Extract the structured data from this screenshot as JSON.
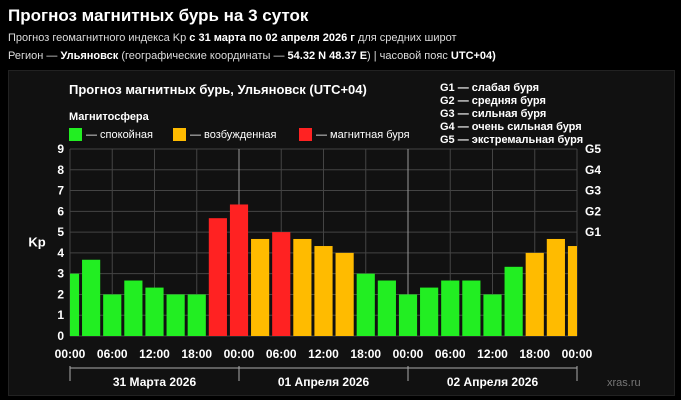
{
  "header": {
    "title": "Прогноз магнитных бурь на 3 суток",
    "line1_prefix": "Прогноз геомагнитного индекса Kp",
    "line1_dates": "с 31 марта по 02 апреля 2026 г",
    "line1_suffix": "для средних широт",
    "line2_prefix": "Регион —",
    "line2_city": "Ульяновск",
    "line2_coords_prefix": "(географические координаты —",
    "line2_coords": "54.32 N 48.37 E",
    "line2_tz_prefix": ") | часовой пояс",
    "line2_tz": "UTC+04)"
  },
  "chart_data": {
    "type": "bar",
    "title": "Прогноз магнитных бурь, Ульяновск (UTC+04)",
    "ylabel": "Kp",
    "ylim": [
      0,
      9
    ],
    "yticks": [
      0,
      1,
      2,
      3,
      4,
      5,
      6,
      7,
      8,
      9
    ],
    "g_scale": [
      {
        "label": "G1",
        "kp": 5
      },
      {
        "label": "G2",
        "kp": 6
      },
      {
        "label": "G3",
        "kp": 7
      },
      {
        "label": "G4",
        "kp": 8
      },
      {
        "label": "G5",
        "kp": 9
      }
    ],
    "legend_title": "Магнитосфера",
    "legend": [
      {
        "label": "— спокойная",
        "color": "#22ee22"
      },
      {
        "label": "— возбужденная",
        "color": "#ffbb00"
      },
      {
        "label": "— магнитная буря",
        "color": "#ff2222"
      }
    ],
    "g_legend": [
      "G1 — слабая буря",
      "G2 — средняя буря",
      "G3 — сильная буря",
      "G4 — очень сильная буря",
      "G5 — экстремальная буря"
    ],
    "values": [
      3.0,
      3.67,
      2.0,
      2.67,
      2.33,
      2.0,
      2.0,
      5.67,
      6.33,
      4.67,
      5.0,
      4.67,
      4.33,
      4.0,
      3.0,
      2.67,
      2.0,
      2.33,
      2.67,
      2.67,
      2.0,
      3.33,
      4.0,
      4.67,
      4.33
    ],
    "xticks": [
      "00:00",
      "06:00",
      "12:00",
      "18:00",
      "00:00",
      "06:00",
      "12:00",
      "18:00",
      "00:00",
      "06:00",
      "12:00",
      "18:00",
      "00:00"
    ],
    "days": [
      "31 Марта 2026",
      "01 Апреля 2026",
      "02 Апреля 2026"
    ],
    "colors": {
      "quiet": "#22ee22",
      "active": "#ffbb00",
      "storm": "#ff2222"
    }
  },
  "watermark": "xras.ru"
}
